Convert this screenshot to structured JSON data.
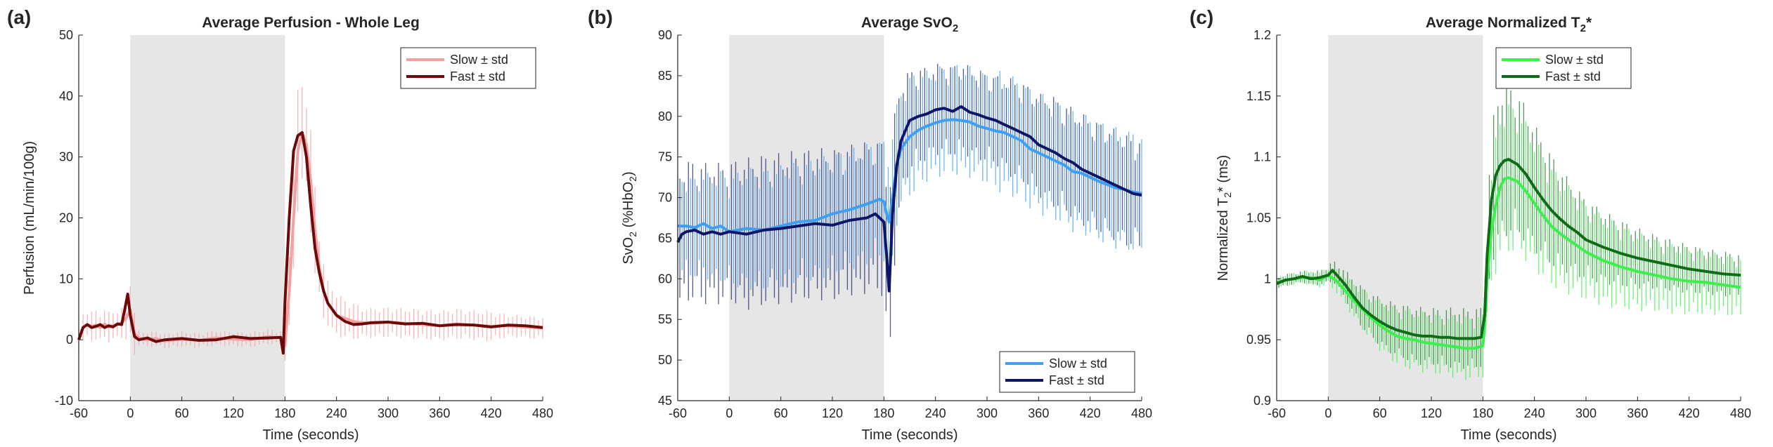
{
  "chart_data": [
    {
      "type": "line",
      "panel_label": "(a)",
      "title": "Average Perfusion - Whole Leg",
      "xlabel": "Time (seconds)",
      "ylabel": "Perfusion (mL/min/100g)",
      "xlim": [
        -60,
        480
      ],
      "ylim": [
        -10,
        50
      ],
      "xticks": [
        -60,
        0,
        60,
        120,
        180,
        240,
        300,
        360,
        420,
        480
      ],
      "yticks": [
        -10,
        0,
        10,
        20,
        30,
        40,
        50
      ],
      "shaded_region": [
        0,
        180
      ],
      "legend_position": "top-right",
      "series": [
        {
          "name": "Slow ± std",
          "color": "#f4a0a0",
          "width": 4,
          "x": [
            -60,
            -55,
            -50,
            -45,
            -40,
            -35,
            -30,
            -25,
            -20,
            -15,
            -10,
            -5,
            0,
            5,
            10,
            20,
            30,
            40,
            60,
            80,
            100,
            120,
            140,
            160,
            175,
            180,
            185,
            190,
            195,
            200,
            205,
            210,
            215,
            220,
            225,
            230,
            240,
            250,
            260,
            270,
            280,
            300,
            320,
            340,
            360,
            380,
            400,
            420,
            440,
            460,
            480
          ],
          "y": [
            0,
            2,
            2.5,
            2.2,
            2.4,
            2,
            2.6,
            2.1,
            2.3,
            2.5,
            2.8,
            3.5,
            5,
            1,
            0.3,
            0,
            0.2,
            -0.2,
            0.1,
            -0.1,
            0.3,
            0.1,
            0,
            0.5,
            0.3,
            -1,
            8,
            20,
            31,
            34,
            32,
            26,
            18,
            12,
            8,
            6,
            4,
            3.5,
            3,
            2.8,
            2.7,
            2.9,
            2.7,
            2.5,
            2.3,
            2.6,
            2.4,
            2.2,
            2.3,
            2.1,
            1.9
          ],
          "std": [
            1.5,
            2,
            2,
            2,
            2,
            2,
            2,
            2,
            2,
            2,
            2,
            3,
            5,
            3,
            1,
            1,
            1,
            1,
            1,
            1,
            1,
            1,
            1,
            1,
            1,
            2,
            6,
            8,
            8,
            7,
            7,
            7,
            6,
            5,
            4,
            3,
            3,
            2.5,
            2.5,
            2,
            2,
            2,
            2,
            2,
            2,
            2,
            2,
            2,
            1.5,
            1.5,
            1.5
          ]
        },
        {
          "name": "Fast ± std",
          "color": "#6b0a0a",
          "width": 4,
          "x": [
            -60,
            -55,
            -50,
            -45,
            -40,
            -35,
            -30,
            -25,
            -20,
            -15,
            -10,
            -5,
            -3,
            0,
            5,
            10,
            20,
            30,
            40,
            60,
            80,
            100,
            120,
            140,
            160,
            175,
            178,
            180,
            185,
            190,
            195,
            200,
            205,
            210,
            215,
            220,
            225,
            230,
            240,
            250,
            260,
            270,
            280,
            300,
            320,
            340,
            360,
            380,
            400,
            420,
            440,
            460,
            480
          ],
          "y": [
            0,
            2,
            2.5,
            2,
            2.2,
            2.5,
            2,
            2.3,
            2.1,
            2.6,
            2.5,
            6,
            7.5,
            4,
            0.5,
            0,
            0.3,
            -0.3,
            0,
            0.2,
            -0.1,
            0,
            0.5,
            0.2,
            0.3,
            0.4,
            -2.2,
            6,
            20,
            31,
            33.5,
            34,
            30,
            22,
            15,
            11,
            8,
            6,
            4,
            3,
            2.5,
            2.6,
            2.8,
            2.9,
            2.6,
            2.7,
            2.3,
            2.5,
            2.4,
            2.1,
            2.4,
            2.3,
            2
          ]
        },
        {
          "name": "",
          "color": "#6b0a0a",
          "width": 0,
          "x": [],
          "y": []
        }
      ]
    },
    {
      "type": "line",
      "panel_label": "(b)",
      "title": "Average SvO2",
      "title_main": "Average SvO",
      "title_sub": "2",
      "xlabel": "Time (seconds)",
      "ylabel_parts": [
        "SvO",
        "2",
        " (%HbO",
        "2",
        ")"
      ],
      "xlim": [
        -60,
        480
      ],
      "ylim": [
        45,
        90
      ],
      "xticks": [
        -60,
        0,
        60,
        120,
        180,
        240,
        300,
        360,
        420,
        480
      ],
      "yticks": [
        45,
        50,
        55,
        60,
        65,
        70,
        75,
        80,
        85,
        90
      ],
      "shaded_region": [
        0,
        180
      ],
      "legend_position": "bottom-right",
      "series": [
        {
          "name": "Slow ± std",
          "color": "#3d9ff5",
          "width": 4,
          "x": [
            -60,
            -50,
            -40,
            -30,
            -20,
            -10,
            0,
            20,
            40,
            60,
            80,
            100,
            120,
            140,
            160,
            175,
            180,
            183,
            186,
            190,
            195,
            200,
            210,
            220,
            230,
            240,
            250,
            260,
            270,
            280,
            290,
            300,
            310,
            320,
            330,
            340,
            350,
            360,
            370,
            380,
            390,
            400,
            410,
            420,
            430,
            440,
            450,
            460,
            470,
            480
          ],
          "y": [
            66.5,
            66.5,
            66.3,
            66.8,
            66.2,
            66.5,
            65.8,
            66.2,
            66,
            66.5,
            67,
            67.2,
            68,
            68.5,
            69.2,
            69.8,
            69.5,
            68,
            67,
            70,
            74,
            76,
            77.5,
            78.3,
            78.8,
            79.2,
            79.5,
            79.6,
            79.5,
            79.3,
            78.8,
            78.5,
            78.2,
            78,
            77.5,
            77,
            76,
            75.5,
            75,
            74.5,
            74,
            73.2,
            73,
            72.5,
            72,
            71.6,
            71.2,
            71,
            70.7,
            70.5
          ],
          "std": [
            5,
            5,
            5,
            5,
            5.5,
            5.5,
            5.5,
            6,
            6,
            6,
            6,
            6,
            6,
            6,
            6,
            6,
            6,
            7,
            7,
            7,
            6,
            6,
            6,
            6,
            5.5,
            5.5,
            5.5,
            5.5,
            5.5,
            5.5,
            5.5,
            5.5,
            6,
            6,
            6,
            6,
            6,
            6,
            6,
            6,
            6,
            6,
            6,
            6,
            6,
            6,
            6,
            6,
            6,
            6
          ]
        },
        {
          "name": "Fast ± std",
          "color": "#0c1566",
          "width": 4,
          "x": [
            -60,
            -55,
            -50,
            -40,
            -30,
            -20,
            -10,
            0,
            20,
            40,
            60,
            80,
            100,
            120,
            140,
            160,
            170,
            175,
            180,
            183,
            186,
            190,
            195,
            200,
            210,
            220,
            230,
            240,
            250,
            260,
            270,
            280,
            290,
            300,
            310,
            320,
            330,
            340,
            350,
            360,
            370,
            380,
            390,
            400,
            410,
            420,
            430,
            440,
            450,
            460,
            470,
            480
          ],
          "y": [
            64.5,
            65.5,
            65.8,
            66,
            65.5,
            65.8,
            65.5,
            65.8,
            65.5,
            66,
            66.2,
            66.5,
            66.8,
            66.6,
            67.2,
            67.5,
            68,
            67.5,
            67,
            63,
            58.5,
            68,
            74,
            77,
            79.5,
            80,
            80.3,
            80.8,
            81,
            80.6,
            81.2,
            80.5,
            80.2,
            79.8,
            79.5,
            79,
            78.5,
            78,
            77.5,
            76.5,
            76,
            75.5,
            74.8,
            74.3,
            73.5,
            73,
            72.5,
            72,
            71.5,
            71,
            70.5,
            70.3
          ],
          "std": [
            7,
            7,
            7,
            7,
            7,
            7,
            7,
            7,
            7.5,
            7.5,
            7.5,
            7.5,
            7.5,
            7.5,
            7.5,
            7.5,
            7.5,
            7.5,
            8,
            9,
            9,
            8,
            7,
            6,
            5,
            5,
            4.5,
            4.5,
            4.5,
            4.5,
            4.5,
            4.5,
            4.5,
            4.5,
            4.5,
            4.5,
            5,
            5,
            5,
            5,
            5.5,
            5.5,
            5.5,
            5.5,
            5.5,
            5.5,
            5.5,
            5.5,
            5.5,
            5.5,
            5.5,
            5.5
          ]
        },
        {
          "name": "",
          "color": "#0c1566",
          "width": 0,
          "x": [],
          "y": []
        }
      ]
    },
    {
      "type": "line",
      "panel_label": "(c)",
      "title": "Average Normalized T2*",
      "title_main": "Average Normalized T",
      "title_sub": "2",
      "title_tail": "*",
      "xlabel": "Time (seconds)",
      "ylabel_parts": [
        "Normalized T",
        "2",
        "* (ms)"
      ],
      "xlim": [
        -60,
        480
      ],
      "ylim": [
        0.9,
        1.2
      ],
      "xticks": [
        -60,
        0,
        60,
        120,
        180,
        240,
        300,
        360,
        420,
        480
      ],
      "yticks": [
        0.9,
        0.95,
        1,
        1.05,
        1.1,
        1.15,
        1.2
      ],
      "ytick_labels": [
        "0.9",
        "0.95",
        "1",
        "1.05",
        "1.1",
        "1.15",
        "1.2"
      ],
      "shaded_region": [
        0,
        180
      ],
      "legend_position": "top-right",
      "series": [
        {
          "name": "Slow ± std",
          "color": "#3bf04a",
          "width": 4,
          "x": [
            -60,
            -50,
            -40,
            -30,
            -20,
            -10,
            0,
            10,
            20,
            30,
            40,
            50,
            60,
            70,
            80,
            90,
            100,
            110,
            120,
            130,
            140,
            150,
            160,
            170,
            180,
            182,
            185,
            190,
            195,
            200,
            205,
            210,
            220,
            230,
            240,
            250,
            260,
            270,
            280,
            290,
            300,
            320,
            340,
            360,
            380,
            400,
            420,
            440,
            460,
            480
          ],
          "y": [
            0.997,
            0.999,
            1,
            1.001,
            1.001,
            0.999,
            1.003,
            0.998,
            0.99,
            0.982,
            0.975,
            0.968,
            0.962,
            0.957,
            0.953,
            0.951,
            0.95,
            0.948,
            0.947,
            0.946,
            0.945,
            0.944,
            0.943,
            0.943,
            0.945,
            0.96,
            1.0,
            1.04,
            1.06,
            1.075,
            1.082,
            1.083,
            1.08,
            1.072,
            1.062,
            1.052,
            1.043,
            1.037,
            1.032,
            1.027,
            1.022,
            1.015,
            1.01,
            1.006,
            1.003,
            1,
            0.998,
            0.997,
            0.995,
            0.993
          ],
          "std": [
            0.004,
            0.004,
            0.004,
            0.004,
            0.005,
            0.005,
            0.006,
            0.008,
            0.01,
            0.012,
            0.014,
            0.015,
            0.017,
            0.018,
            0.019,
            0.02,
            0.02,
            0.02,
            0.02,
            0.02,
            0.02,
            0.021,
            0.021,
            0.021,
            0.021,
            0.025,
            0.03,
            0.04,
            0.045,
            0.048,
            0.05,
            0.05,
            0.048,
            0.046,
            0.044,
            0.042,
            0.04,
            0.038,
            0.036,
            0.034,
            0.032,
            0.03,
            0.028,
            0.026,
            0.024,
            0.023,
            0.022,
            0.021,
            0.02,
            0.02
          ]
        },
        {
          "name": "Fast ± std",
          "color": "#0e6b16",
          "width": 4,
          "x": [
            -60,
            -50,
            -40,
            -30,
            -20,
            -10,
            0,
            5,
            10,
            20,
            30,
            40,
            50,
            60,
            70,
            80,
            90,
            100,
            110,
            120,
            130,
            140,
            150,
            160,
            170,
            178,
            182,
            185,
            190,
            195,
            200,
            205,
            210,
            220,
            230,
            240,
            250,
            260,
            270,
            280,
            290,
            300,
            320,
            340,
            360,
            380,
            400,
            420,
            440,
            460,
            480
          ],
          "y": [
            0.996,
            0.999,
            1,
            1.002,
            1,
            1.001,
            1.003,
            1.007,
            1.003,
            0.995,
            0.985,
            0.976,
            0.97,
            0.965,
            0.961,
            0.958,
            0.956,
            0.954,
            0.953,
            0.953,
            0.952,
            0.952,
            0.951,
            0.951,
            0.951,
            0.952,
            0.97,
            1.02,
            1.065,
            1.085,
            1.093,
            1.097,
            1.098,
            1.094,
            1.086,
            1.075,
            1.065,
            1.056,
            1.049,
            1.043,
            1.038,
            1.032,
            1.026,
            1.021,
            1.017,
            1.014,
            1.011,
            1.008,
            1.006,
            1.004,
            1.003
          ],
          "std": [
            0.004,
            0.004,
            0.004,
            0.004,
            0.005,
            0.005,
            0.006,
            0.007,
            0.008,
            0.01,
            0.012,
            0.014,
            0.015,
            0.016,
            0.017,
            0.018,
            0.018,
            0.019,
            0.019,
            0.019,
            0.019,
            0.02,
            0.02,
            0.02,
            0.02,
            0.02,
            0.025,
            0.035,
            0.045,
            0.05,
            0.052,
            0.052,
            0.05,
            0.048,
            0.045,
            0.042,
            0.04,
            0.037,
            0.034,
            0.031,
            0.029,
            0.027,
            0.024,
            0.022,
            0.02,
            0.018,
            0.017,
            0.016,
            0.015,
            0.015,
            0.014
          ]
        },
        {
          "name": "",
          "color": "#0e6b16",
          "width": 0,
          "x": [],
          "y": []
        }
      ]
    }
  ]
}
